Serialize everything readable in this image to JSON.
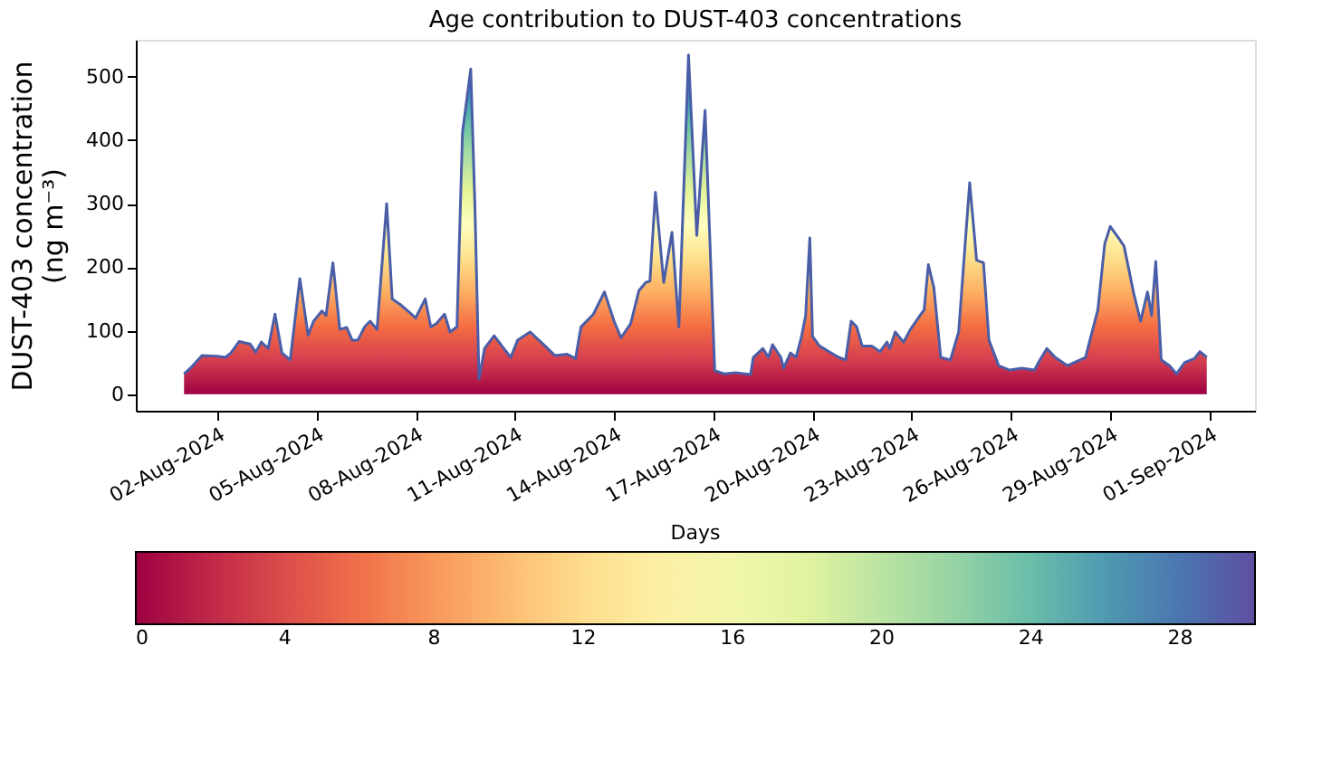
{
  "chart_data": {
    "type": "area",
    "title": "Age contribution to DUST-403 concentrations",
    "ylabel": "DUST-403 concentration\n(ng m⁻³)",
    "clabel": "Days",
    "x": [
      "2024-08-01T00:00",
      "2024-08-01T06:00",
      "2024-08-01T13:00",
      "2024-08-02T00:00",
      "2024-08-02T06:00",
      "2024-08-02T10:00",
      "2024-08-02T16:00",
      "2024-08-03T00:00",
      "2024-08-03T04:00",
      "2024-08-03T08:00",
      "2024-08-03T13:00",
      "2024-08-03T18:00",
      "2024-08-03T23:00",
      "2024-08-04T05:00",
      "2024-08-04T12:00",
      "2024-08-04T18:00",
      "2024-08-04T22:00",
      "2024-08-05T04:00",
      "2024-08-05T07:00",
      "2024-08-05T12:00",
      "2024-08-05T17:00",
      "2024-08-05T22:00",
      "2024-08-06T02:00",
      "2024-08-06T06:00",
      "2024-08-06T11:00",
      "2024-08-06T15:00",
      "2024-08-06T20:00",
      "2024-08-07T03:00",
      "2024-08-07T07:00",
      "2024-08-07T13:00",
      "2024-08-07T20:00",
      "2024-08-08T00:00",
      "2024-08-08T07:00",
      "2024-08-08T11:00",
      "2024-08-08T15:00",
      "2024-08-08T21:00",
      "2024-08-09T01:00",
      "2024-08-09T06:00",
      "2024-08-09T10:00",
      "2024-08-09T16:00",
      "2024-08-09T19:00",
      "2024-08-09T22:00",
      "2024-08-10T02:00",
      "2024-08-10T09:00",
      "2024-08-10T16:00",
      "2024-08-10T21:00",
      "2024-08-11T02:00",
      "2024-08-11T11:00",
      "2024-08-11T20:00",
      "2024-08-12T05:00",
      "2024-08-12T14:00",
      "2024-08-12T20:00",
      "2024-08-13T00:00",
      "2024-08-13T09:00",
      "2024-08-13T17:00",
      "2024-08-14T00:00",
      "2024-08-14T05:00",
      "2024-08-14T12:00",
      "2024-08-14T18:00",
      "2024-08-14T23:00",
      "2024-08-15T02:00",
      "2024-08-15T06:00",
      "2024-08-15T12:00",
      "2024-08-15T18:00",
      "2024-08-15T23:00",
      "2024-08-16T06:00",
      "2024-08-16T12:00",
      "2024-08-16T18:00",
      "2024-08-17T01:00",
      "2024-08-17T08:00",
      "2024-08-17T16:00",
      "2024-08-18T03:00",
      "2024-08-18T05:00",
      "2024-08-18T12:00",
      "2024-08-18T16:00",
      "2024-08-18T19:00",
      "2024-08-19T01:00",
      "2024-08-19T03:00",
      "2024-08-19T08:00",
      "2024-08-19T12:00",
      "2024-08-19T16:00",
      "2024-08-19T19:00",
      "2024-08-19T22:00",
      "2024-08-20T00:00",
      "2024-08-20T05:00",
      "2024-08-20T12:00",
      "2024-08-20T19:00",
      "2024-08-21T00:00",
      "2024-08-21T04:00",
      "2024-08-21T08:00",
      "2024-08-21T12:00",
      "2024-08-21T19:00",
      "2024-08-22T01:00",
      "2024-08-22T06:00",
      "2024-08-22T08:00",
      "2024-08-22T12:00",
      "2024-08-22T18:00",
      "2024-08-22T23:00",
      "2024-08-23T06:00",
      "2024-08-23T09:00",
      "2024-08-23T12:00",
      "2024-08-23T16:00",
      "2024-08-23T21:00",
      "2024-08-24T04:00",
      "2024-08-24T10:00",
      "2024-08-24T18:00",
      "2024-08-24T23:00",
      "2024-08-25T04:00",
      "2024-08-25T08:00",
      "2024-08-25T15:00",
      "2024-08-25T23:00",
      "2024-08-26T08:00",
      "2024-08-26T17:00",
      "2024-08-26T21:00",
      "2024-08-27T02:00",
      "2024-08-27T08:00",
      "2024-08-27T17:00",
      "2024-08-28T06:00",
      "2024-08-28T15:00",
      "2024-08-28T20:00",
      "2024-08-29T00:00",
      "2024-08-29T06:00",
      "2024-08-29T10:00",
      "2024-08-29T17:00",
      "2024-08-29T22:00",
      "2024-08-30T03:00",
      "2024-08-30T06:00",
      "2024-08-30T09:00",
      "2024-08-30T13:00",
      "2024-08-30T19:00",
      "2024-08-31T00:00",
      "2024-08-31T06:00",
      "2024-08-31T13:00",
      "2024-08-31T17:00",
      "2024-08-31T22:00"
    ],
    "series": [
      {
        "color": "#4a5ea8",
        "values": [
          32,
          44,
          61,
          60,
          58,
          65,
          83,
          79,
          66,
          82,
          72,
          126,
          65,
          54,
          182,
          93,
          115,
          131,
          124,
          207,
          102,
          105,
          85,
          85,
          106,
          115,
          102,
          300,
          150,
          141,
          128,
          120,
          150,
          106,
          111,
          126,
          98,
          106,
          412,
          512,
          298,
          24,
          72,
          92,
          72,
          58,
          85,
          98,
          80,
          61,
          63,
          56,
          106,
          126,
          161,
          115,
          89,
          111,
          163,
          176,
          178,
          318,
          176,
          255,
          106,
          534,
          250,
          447,
          37,
          32,
          34,
          31,
          58,
          72,
          58,
          78,
          58,
          41,
          65,
          58,
          91,
          124,
          246,
          91,
          76,
          67,
          58,
          54,
          115,
          106,
          76,
          76,
          67,
          82,
          72,
          98,
          82,
          102,
          124,
          133,
          204,
          168,
          58,
          54,
          98,
          333,
          211,
          207,
          85,
          45,
          38,
          41,
          38,
          54,
          72,
          58,
          45,
          58,
          133,
          237,
          264,
          246,
          233,
          159,
          115,
          161,
          124,
          209,
          54,
          45,
          32,
          50,
          56,
          67,
          58
        ]
      }
    ],
    "xlim": [
      "2024-07-30T13:00",
      "2024-09-02T09:00"
    ],
    "xticks": [
      {
        "value": "2024-08-02",
        "label": "02-Aug-2024"
      },
      {
        "value": "2024-08-05",
        "label": "05-Aug-2024"
      },
      {
        "value": "2024-08-08",
        "label": "08-Aug-2024"
      },
      {
        "value": "2024-08-11",
        "label": "11-Aug-2024"
      },
      {
        "value": "2024-08-14",
        "label": "14-Aug-2024"
      },
      {
        "value": "2024-08-17",
        "label": "17-Aug-2024"
      },
      {
        "value": "2024-08-20",
        "label": "20-Aug-2024"
      },
      {
        "value": "2024-08-23",
        "label": "23-Aug-2024"
      },
      {
        "value": "2024-08-26",
        "label": "26-Aug-2024"
      },
      {
        "value": "2024-08-29",
        "label": "29-Aug-2024"
      },
      {
        "value": "2024-09-01",
        "label": "01-Sep-2024"
      }
    ],
    "ylim": [
      -26,
      558
    ],
    "yticks": [
      0,
      100,
      200,
      300,
      400,
      500
    ],
    "clim": [
      0,
      30
    ],
    "cticks": [
      0,
      4,
      8,
      12,
      16,
      20,
      24,
      28
    ],
    "grid": false
  }
}
